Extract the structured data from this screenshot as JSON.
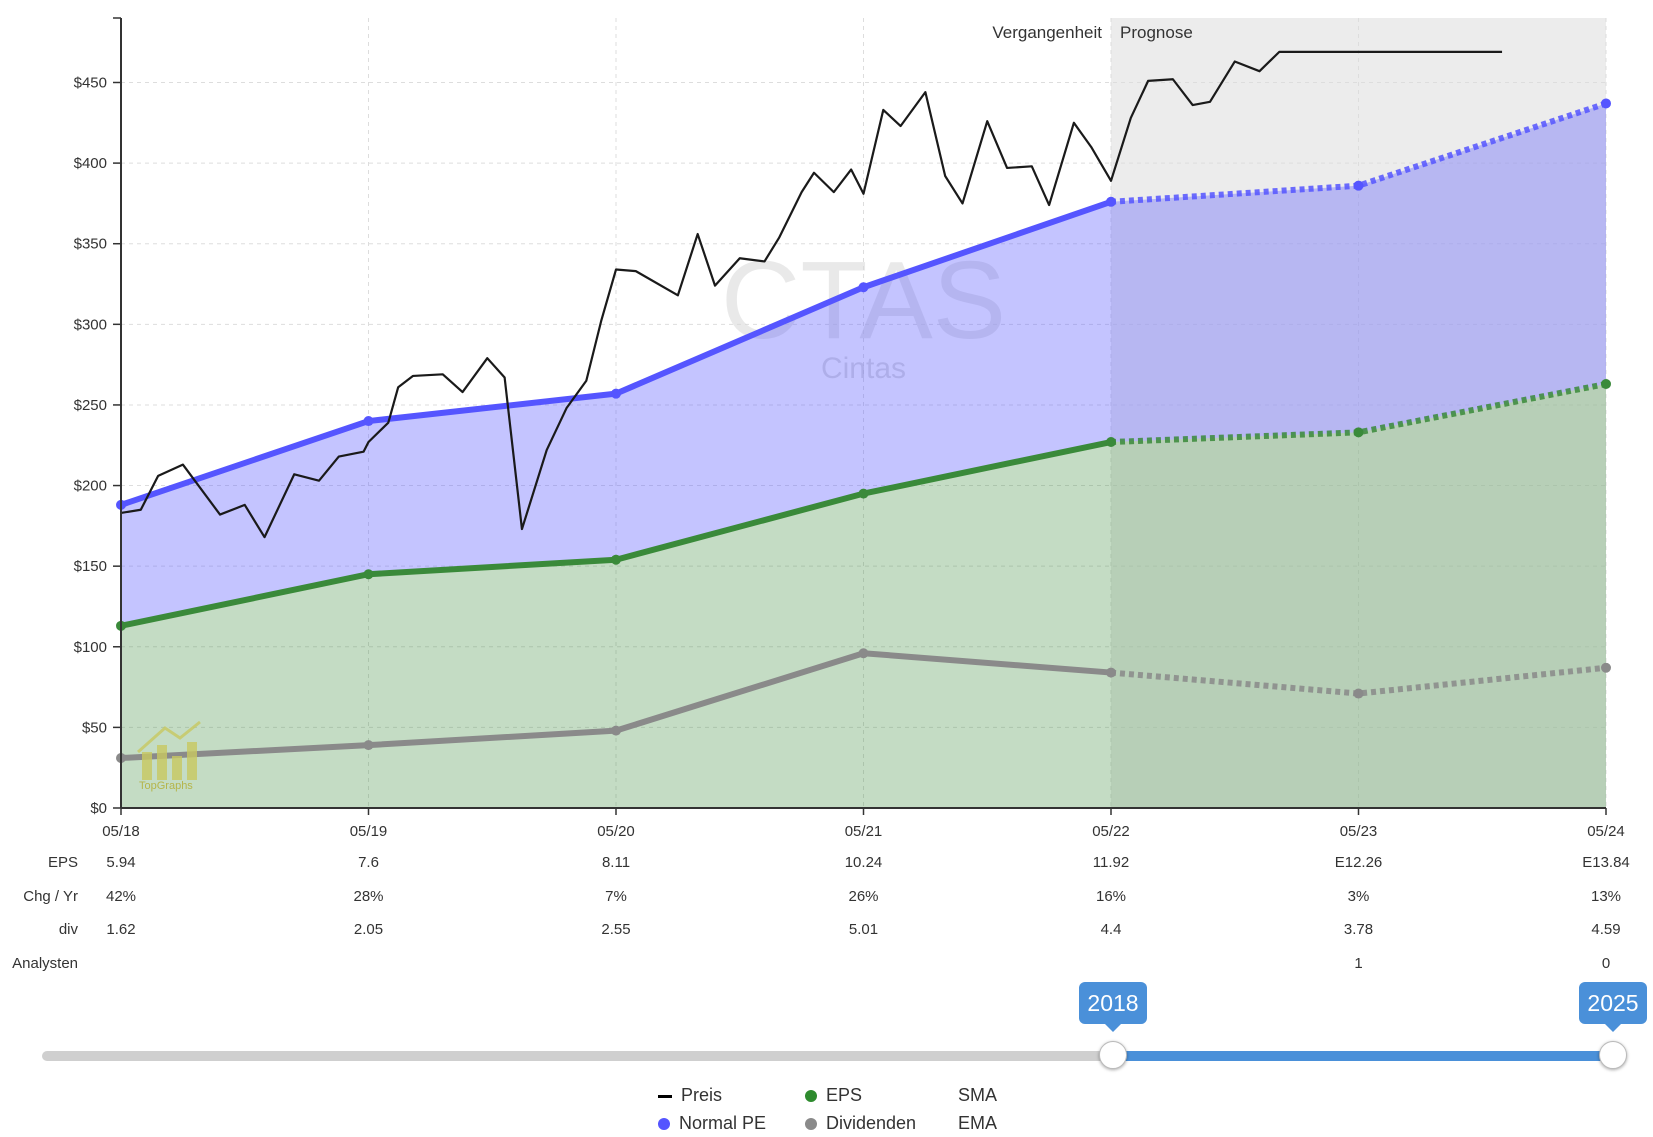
{
  "chart_data": {
    "type": "line",
    "watermark": {
      "ticker": "CTAS",
      "name": "Cintas"
    },
    "logo_text": "TopGraphs",
    "period_labels": {
      "past": "Vergangenheit",
      "forecast": "Prognose"
    },
    "ylim": [
      0,
      490
    ],
    "yticks": [
      0,
      50,
      100,
      150,
      200,
      250,
      300,
      350,
      400,
      450
    ],
    "ytick_labels": [
      "$0",
      "$50",
      "$100",
      "$150",
      "$200",
      "$250",
      "$300",
      "$350",
      "$400",
      "$450"
    ],
    "categories": [
      "05/18",
      "05/19",
      "05/20",
      "05/21",
      "05/22",
      "05/23",
      "05/24"
    ],
    "forecast_start_index": 4,
    "series": [
      {
        "name": "Normal PE",
        "color": "#5555ff",
        "values": [
          188,
          240,
          257,
          323,
          376,
          386,
          437
        ]
      },
      {
        "name": "EPS",
        "color": "#3a8a3a",
        "values": [
          113,
          145,
          154,
          195,
          227,
          233,
          263
        ]
      },
      {
        "name": "Dividenden",
        "color": "#8a8a8a",
        "values": [
          31,
          39,
          48,
          96,
          84,
          71,
          87
        ]
      }
    ],
    "price_series": {
      "name": "Preis",
      "color": "#1a1a1a",
      "x": [
        0,
        0.08,
        0.15,
        0.25,
        0.4,
        0.5,
        0.58,
        0.7,
        0.8,
        0.88,
        0.98,
        1.0,
        1.08,
        1.12,
        1.18,
        1.3,
        1.38,
        1.48,
        1.55,
        1.62,
        1.72,
        1.8,
        1.88,
        1.94,
        2.0,
        2.08,
        2.25,
        2.33,
        2.4,
        2.5,
        2.6,
        2.66,
        2.75,
        2.8,
        2.88,
        2.95,
        3.0,
        3.08,
        3.15,
        3.25,
        3.33,
        3.4,
        3.5,
        3.58,
        3.68,
        3.75,
        3.85,
        3.92,
        4.0,
        4.08,
        4.15,
        4.25,
        4.33,
        4.4,
        4.5,
        4.6,
        4.68,
        4.75,
        4.85,
        4.93,
        5.0,
        5.08,
        5.15,
        5.22,
        5.28,
        5.35,
        5.42,
        5.48,
        5.58
      ],
      "y": [
        183,
        185,
        206,
        213,
        182,
        188,
        168,
        207,
        203,
        218,
        221,
        227,
        239,
        261,
        268,
        269,
        258,
        279,
        267,
        173,
        222,
        248,
        265,
        302,
        334,
        333,
        318,
        356,
        324,
        341,
        339,
        354,
        382,
        394,
        382,
        396,
        381,
        433,
        423,
        444,
        392,
        375,
        426,
        397,
        398,
        374,
        425,
        410,
        389,
        428,
        451,
        452,
        436,
        438,
        463,
        457,
        469,
        469,
        469,
        469,
        469,
        469,
        469,
        469,
        469,
        469,
        469,
        469,
        469
      ]
    },
    "data_rows": [
      {
        "label": "EPS",
        "values": [
          "5.94",
          "7.6",
          "8.11",
          "10.24",
          "11.92",
          "E12.26",
          "E13.84"
        ]
      },
      {
        "label": "Chg / Yr",
        "values": [
          "42%",
          "28%",
          "7%",
          "26%",
          "16%",
          "3%",
          "13%"
        ]
      },
      {
        "label": "div",
        "values": [
          "1.62",
          "2.05",
          "2.55",
          "5.01",
          "4.4",
          "3.78",
          "4.59"
        ]
      },
      {
        "label": "Analysten",
        "values": [
          "",
          "",
          "",
          "",
          "",
          "1",
          "0"
        ]
      }
    ]
  },
  "slider": {
    "start_label": "2018",
    "end_label": "2025"
  },
  "legend": {
    "items": [
      {
        "label": "Preis"
      },
      {
        "label": "EPS"
      },
      {
        "label": "SMA"
      },
      {
        "label": "Normal PE"
      },
      {
        "label": "Dividenden"
      },
      {
        "label": "EMA"
      }
    ]
  }
}
